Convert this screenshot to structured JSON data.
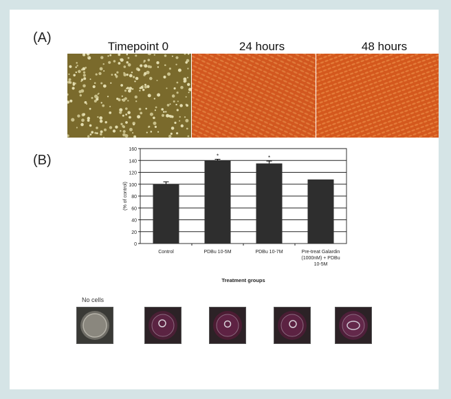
{
  "panel_a": {
    "label": "(A)",
    "timepoints": [
      "Timepoint 0",
      "24 hours",
      "48 hours"
    ]
  },
  "panel_b": {
    "label": "(B)"
  },
  "chart_data": {
    "type": "bar",
    "categories": [
      "Control",
      "PDBu 10-5M",
      "PDBu 10-7M",
      "Pre-treat Galardin (1000nM) + PDBu 10-5M"
    ],
    "category_lines": [
      [
        "Control"
      ],
      [
        "PDBu 10-5M"
      ],
      [
        "PDBu 10-7M"
      ],
      [
        "Pre-treat Galardin",
        "(1000nM) + PDBu",
        "10-5M"
      ]
    ],
    "values": [
      100,
      140,
      135,
      108
    ],
    "errors": [
      4,
      2,
      4,
      0
    ],
    "significance": [
      "",
      "*",
      "*",
      ""
    ],
    "title": "",
    "xlabel": "Treatment groups",
    "ylabel": "(% of control)",
    "ylim": [
      0,
      160
    ],
    "yticks": [
      0,
      20,
      40,
      60,
      80,
      100,
      120,
      140,
      160
    ],
    "grid": true,
    "bar_color": "#2e2e2e"
  },
  "wells": {
    "first_label": "No cells"
  }
}
